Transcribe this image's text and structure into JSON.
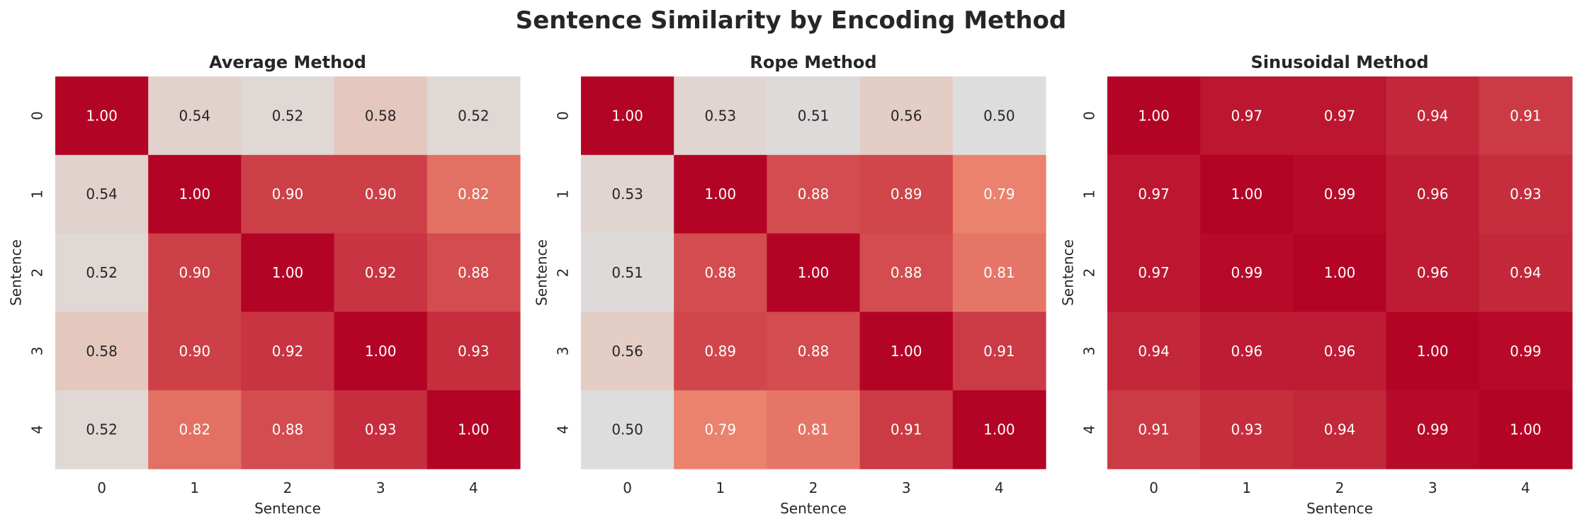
{
  "figure": {
    "title": "Sentence Similarity by Encoding Method",
    "label_dark_text_color": "#262626",
    "label_light_text_color": "#ffffff"
  },
  "chart_data": [
    {
      "type": "heatmap",
      "title": "Average Method",
      "xlabel": "Sentence",
      "ylabel": "Sentence",
      "x_ticks": [
        "0",
        "1",
        "2",
        "3",
        "4"
      ],
      "y_ticks": [
        "0",
        "1",
        "2",
        "3",
        "4"
      ],
      "value_format": "2 decimals",
      "colormap": "coolwarm",
      "color_range": [
        0,
        1
      ],
      "matrix": [
        [
          1.0,
          0.54,
          0.52,
          0.58,
          0.52
        ],
        [
          0.54,
          1.0,
          0.9,
          0.9,
          0.82
        ],
        [
          0.52,
          0.9,
          1.0,
          0.92,
          0.88
        ],
        [
          0.58,
          0.9,
          0.92,
          1.0,
          0.93
        ],
        [
          0.52,
          0.82,
          0.88,
          0.93,
          1.0
        ]
      ]
    },
    {
      "type": "heatmap",
      "title": "Rope Method",
      "xlabel": "Sentence",
      "ylabel": "Sentence",
      "x_ticks": [
        "0",
        "1",
        "2",
        "3",
        "4"
      ],
      "y_ticks": [
        "0",
        "1",
        "2",
        "3",
        "4"
      ],
      "value_format": "2 decimals",
      "colormap": "coolwarm",
      "color_range": [
        0,
        1
      ],
      "matrix": [
        [
          1.0,
          0.53,
          0.51,
          0.56,
          0.5
        ],
        [
          0.53,
          1.0,
          0.88,
          0.89,
          0.79
        ],
        [
          0.51,
          0.88,
          1.0,
          0.88,
          0.81
        ],
        [
          0.56,
          0.89,
          0.88,
          1.0,
          0.91
        ],
        [
          0.5,
          0.79,
          0.81,
          0.91,
          1.0
        ]
      ]
    },
    {
      "type": "heatmap",
      "title": "Sinusoidal Method",
      "xlabel": "Sentence",
      "ylabel": "Sentence",
      "x_ticks": [
        "0",
        "1",
        "2",
        "3",
        "4"
      ],
      "y_ticks": [
        "0",
        "1",
        "2",
        "3",
        "4"
      ],
      "value_format": "2 decimals",
      "colormap": "coolwarm",
      "color_range": [
        0,
        1
      ],
      "matrix": [
        [
          1.0,
          0.97,
          0.97,
          0.94,
          0.91
        ],
        [
          0.97,
          1.0,
          0.99,
          0.96,
          0.93
        ],
        [
          0.97,
          0.99,
          1.0,
          0.96,
          0.94
        ],
        [
          0.94,
          0.96,
          0.96,
          1.0,
          0.99
        ],
        [
          0.91,
          0.93,
          0.94,
          0.99,
          1.0
        ]
      ]
    }
  ]
}
